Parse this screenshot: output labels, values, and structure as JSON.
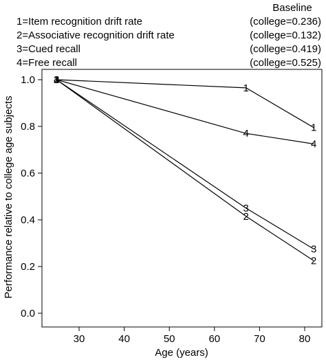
{
  "chart_data": {
    "type": "line",
    "xlabel": "Age (years)",
    "ylabel": "Performance relative to college age subjects",
    "xlim": [
      22,
      84
    ],
    "ylim": [
      0,
      1
    ],
    "xticks": [
      "30",
      "40",
      "50",
      "60",
      "70",
      "80"
    ],
    "yticks": [
      "0.0",
      "0.2",
      "0.4",
      "0.6",
      "0.8",
      "1.0"
    ],
    "grid": false,
    "legend_title": "Baseline",
    "legend": [
      {
        "label": "1=Item recognition drift rate",
        "baseline": "(college=0.236)"
      },
      {
        "label": "2=Associative recognition drift rate",
        "baseline": "(college=0.132)"
      },
      {
        "label": "3=Cued recall",
        "baseline": "(college=0.419)"
      },
      {
        "label": "4=Free recall",
        "baseline": "(college=0.525)"
      }
    ],
    "series": [
      {
        "marker": "1",
        "x": [
          25,
          67,
          82
        ],
        "y": [
          1.0,
          0.965,
          0.795
        ]
      },
      {
        "marker": "2",
        "x": [
          25,
          67,
          82
        ],
        "y": [
          1.0,
          0.415,
          0.225
        ]
      },
      {
        "marker": "3",
        "x": [
          25,
          67,
          82
        ],
        "y": [
          1.0,
          0.45,
          0.275
        ]
      },
      {
        "marker": "4",
        "x": [
          25,
          67,
          82
        ],
        "y": [
          1.0,
          0.77,
          0.725
        ]
      }
    ]
  }
}
